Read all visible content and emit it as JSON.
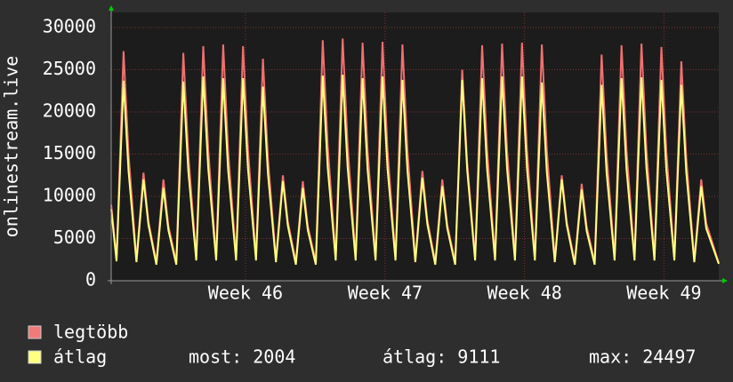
{
  "chart_data": {
    "type": "line",
    "y_label": "onlinestream.live",
    "x": [
      0,
      0.27,
      0.62,
      0.87,
      1.27,
      1.62,
      1.87,
      2.27,
      2.62,
      2.87,
      3.27,
      3.62,
      3.87,
      4.27,
      4.62,
      4.87,
      5.27,
      5.62,
      5.87,
      6.27,
      6.62,
      6.87,
      7.27,
      7.62,
      7.87,
      8.27,
      8.62,
      8.87,
      9.27,
      9.62,
      9.87,
      10.27,
      10.62,
      10.87,
      11.27,
      11.62,
      11.87,
      12.27,
      12.62,
      12.87,
      13.27,
      13.62,
      13.87,
      14.27,
      14.62,
      14.87,
      15.27,
      15.62,
      15.87,
      16.27,
      16.62,
      16.87,
      17.27,
      17.62,
      17.87,
      18.27,
      18.62,
      18.87,
      19.27,
      19.62,
      19.87,
      20.27,
      20.62,
      20.87,
      21.27,
      21.62,
      21.87,
      22.27,
      22.62,
      22.87,
      23.27,
      23.62,
      23.87,
      24.27,
      24.62,
      24.87,
      25.27,
      25.62,
      25.87,
      26.27,
      26.62,
      26.87,
      27.27,
      27.62,
      27.87,
      28.27,
      28.62,
      28.87,
      29.27,
      29.62,
      29.87,
      30.5
    ],
    "series": [
      {
        "name": "legtöbb",
        "color": "#f07070",
        "values": [
          9000,
          2600,
          27200,
          15000,
          2500,
          12800,
          7000,
          2200,
          12000,
          6500,
          2200,
          27000,
          15000,
          2700,
          27800,
          15500,
          2700,
          28000,
          15500,
          2700,
          27800,
          15500,
          2700,
          26300,
          14500,
          2500,
          12500,
          7000,
          2200,
          11800,
          6500,
          2200,
          28500,
          16000,
          2700,
          28700,
          16000,
          2700,
          28200,
          15500,
          2700,
          28300,
          15500,
          2700,
          28000,
          15500,
          2500,
          13000,
          7200,
          2200,
          12000,
          6600,
          2200,
          25000,
          14000,
          2700,
          27900,
          15500,
          2700,
          28100,
          15500,
          2700,
          28200,
          15500,
          2700,
          28000,
          15500,
          2500,
          12500,
          7000,
          2200,
          11500,
          6400,
          2200,
          26800,
          15000,
          2700,
          27900,
          15500,
          2700,
          28100,
          15500,
          2700,
          27700,
          15300,
          2700,
          26000,
          14500,
          2500,
          12000,
          6800,
          2100
        ]
      },
      {
        "name": "átlag",
        "color": "#ffff80",
        "values": [
          8500,
          2300,
          23700,
          13000,
          2200,
          12000,
          6600,
          1900,
          11000,
          6000,
          1900,
          23600,
          13000,
          2400,
          24200,
          13300,
          2400,
          24000,
          13200,
          2400,
          24000,
          13200,
          2400,
          23000,
          12700,
          2200,
          11800,
          6500,
          1900,
          11000,
          6000,
          1900,
          24300,
          13400,
          2400,
          24400,
          13400,
          2400,
          24000,
          13200,
          2400,
          24200,
          13300,
          2400,
          23800,
          13100,
          2200,
          12200,
          6700,
          1900,
          11200,
          6200,
          1900,
          23800,
          13100,
          2400,
          24000,
          13200,
          2400,
          24200,
          13300,
          2400,
          24200,
          13300,
          2400,
          23500,
          12900,
          2200,
          12000,
          6600,
          1900,
          10800,
          5900,
          1900,
          23200,
          12800,
          2400,
          24000,
          13200,
          2400,
          24100,
          13300,
          2400,
          23800,
          13100,
          2400,
          23200,
          12800,
          2200,
          11200,
          6200,
          2004
        ]
      }
    ],
    "stats": [
      "most: 2004",
      "átlag: 9111",
      "max: 24497"
    ],
    "xlim": [
      0,
      30.5
    ],
    "xticks": [
      {
        "value": 6.74,
        "label": "Week 46"
      },
      {
        "value": 13.75,
        "label": "Week 47"
      },
      {
        "value": 20.75,
        "label": "Week 48"
      },
      {
        "value": 27.75,
        "label": "Week 49"
      }
    ],
    "ylim": [
      0,
      30000
    ],
    "yticks": [
      0,
      5000,
      10000,
      15000,
      20000,
      25000,
      30000
    ],
    "grid": true
  }
}
